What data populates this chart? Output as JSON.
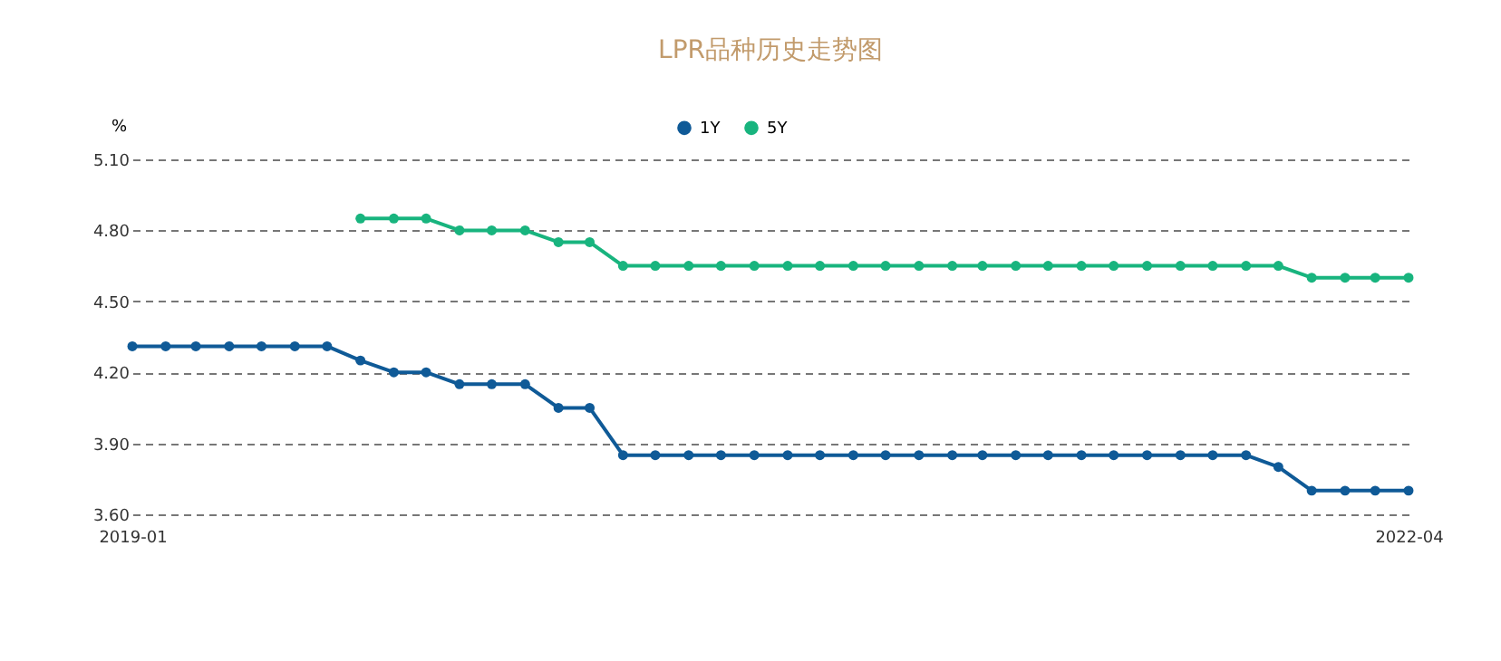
{
  "chart_data": {
    "type": "line",
    "title": "LPR品种历史走势图",
    "ylabel": "%",
    "x": [
      "2019-01",
      "2019-02",
      "2019-03",
      "2019-04",
      "2019-05",
      "2019-06",
      "2019-07",
      "2019-08",
      "2019-09",
      "2019-10",
      "2019-11",
      "2019-12",
      "2020-01",
      "2020-02",
      "2020-03",
      "2020-04",
      "2020-05",
      "2020-06",
      "2020-07",
      "2020-08",
      "2020-09",
      "2020-10",
      "2020-11",
      "2020-12",
      "2021-01",
      "2021-02",
      "2021-03",
      "2021-04",
      "2021-05",
      "2021-06",
      "2021-07",
      "2021-08",
      "2021-09",
      "2021-10",
      "2021-11",
      "2021-12",
      "2022-01",
      "2022-02",
      "2022-03",
      "2022-04"
    ],
    "series": [
      {
        "name": "1Y",
        "color": "#0f5a97",
        "values": [
          4.31,
          4.31,
          4.31,
          4.31,
          4.31,
          4.31,
          4.31,
          4.25,
          4.2,
          4.2,
          4.15,
          4.15,
          4.15,
          4.05,
          4.05,
          3.85,
          3.85,
          3.85,
          3.85,
          3.85,
          3.85,
          3.85,
          3.85,
          3.85,
          3.85,
          3.85,
          3.85,
          3.85,
          3.85,
          3.85,
          3.85,
          3.85,
          3.85,
          3.85,
          3.85,
          3.8,
          3.7,
          3.7,
          3.7,
          3.7
        ]
      },
      {
        "name": "5Y",
        "color": "#18b47e",
        "values": [
          null,
          null,
          null,
          null,
          null,
          null,
          null,
          4.85,
          4.85,
          4.85,
          4.8,
          4.8,
          4.8,
          4.75,
          4.75,
          4.65,
          4.65,
          4.65,
          4.65,
          4.65,
          4.65,
          4.65,
          4.65,
          4.65,
          4.65,
          4.65,
          4.65,
          4.65,
          4.65,
          4.65,
          4.65,
          4.65,
          4.65,
          4.65,
          4.65,
          4.65,
          4.6,
          4.6,
          4.6,
          4.6
        ]
      }
    ],
    "xlim": [
      "2019-01",
      "2022-04"
    ],
    "xticks": [
      "2019-01",
      "2022-04"
    ],
    "ylim": [
      3.6,
      5.1
    ],
    "yticks": [
      {
        "value": 3.6,
        "label": "3.60"
      },
      {
        "value": 3.9,
        "label": "3.90"
      },
      {
        "value": 4.2,
        "label": "4.20"
      },
      {
        "value": 4.5,
        "label": "4.50"
      },
      {
        "value": 4.8,
        "label": "4.80"
      },
      {
        "value": 5.1,
        "label": "5.10"
      }
    ],
    "grid": "y",
    "legend": "top",
    "marker": "circle",
    "line_style": "solid"
  }
}
